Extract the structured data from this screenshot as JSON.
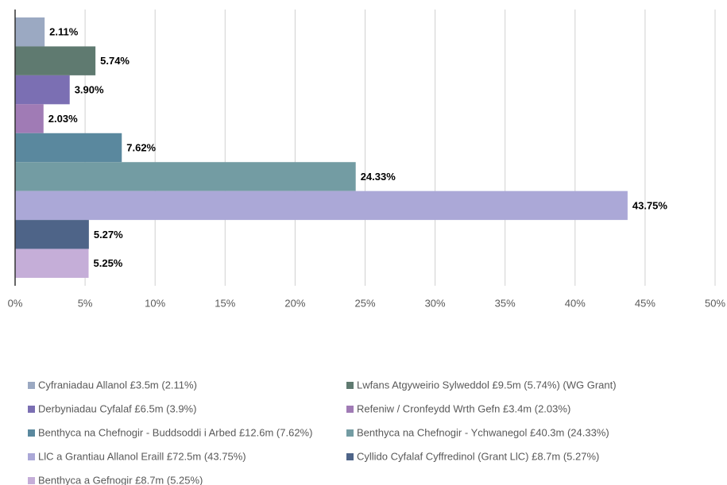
{
  "chart_data": {
    "type": "bar",
    "orientation": "horizontal",
    "series": [
      {
        "name": "Cyfraniadau Allanol £3.5m (2.11%)",
        "color": "#9ba9c2",
        "values": [
          2.11
        ],
        "value_labels": [
          "2.11%"
        ]
      },
      {
        "name": "Lwfans Atgyweirio Sylweddol £9.5m (5.74%) (WG Grant)",
        "color": "#5f7a70",
        "values": [
          5.74
        ],
        "value_labels": [
          "5.74%"
        ]
      },
      {
        "name": "Derbyniadau Cyfalaf £6.5m (3.9%)",
        "color": "#7b6fb3",
        "values": [
          3.9
        ],
        "value_labels": [
          "3.90%"
        ]
      },
      {
        "name": "Refeniw / Cronfeydd Wrth Gefn £3.4m (2.03%)",
        "color": "#a07bb5",
        "values": [
          2.03
        ],
        "value_labels": [
          "2.03%"
        ]
      },
      {
        "name": "Benthyca na Chefnogir - Buddsoddi i Arbed £12.6m (7.62%)",
        "color": "#5a889e",
        "values": [
          7.62
        ],
        "value_labels": [
          "7.62%"
        ]
      },
      {
        "name": "Benthyca na Chefnogir - Ychwanegol £40.3m (24.33%)",
        "color": "#739ca3",
        "values": [
          24.33
        ],
        "value_labels": [
          "24.33%"
        ]
      },
      {
        "name": "LlC a Grantiau Allanol Eraill £72.5m (43.75%)",
        "color": "#aba8d7",
        "values": [
          43.75
        ],
        "value_labels": [
          "43.75%"
        ]
      },
      {
        "name": "Cyllido Cyfalaf Cyffredinol (Grant LlC) £8.7m (5.27%)",
        "color": "#4e6488",
        "values": [
          5.27
        ],
        "value_labels": [
          "5.27%"
        ]
      },
      {
        "name": "Benthyca a Gefnogir £8.7m (5.25%)",
        "color": "#c5aed8",
        "values": [
          5.25
        ],
        "value_labels": [
          "5.25%"
        ]
      }
    ],
    "xlim": [
      0,
      50
    ],
    "xticks": [
      {
        "value": 0,
        "label": "0%"
      },
      {
        "value": 5,
        "label": "5%"
      },
      {
        "value": 10,
        "label": "10%"
      },
      {
        "value": 15,
        "label": "15%"
      },
      {
        "value": 20,
        "label": "20%"
      },
      {
        "value": 25,
        "label": "25%"
      },
      {
        "value": 30,
        "label": "30%"
      },
      {
        "value": 35,
        "label": "35%"
      },
      {
        "value": 40,
        "label": "40%"
      },
      {
        "value": 45,
        "label": "45%"
      },
      {
        "value": 50,
        "label": "50%"
      }
    ],
    "grid": true,
    "legend": "bottom"
  }
}
